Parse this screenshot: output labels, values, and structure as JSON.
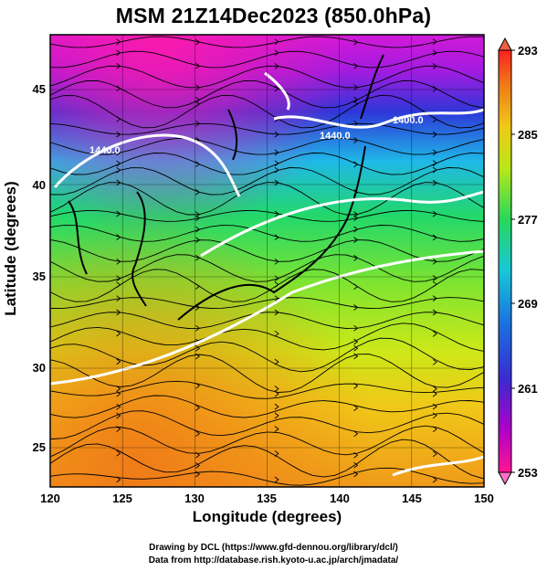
{
  "title": "MSM 21Z14Dec2023 (850.0hPa)",
  "x_axis": {
    "label": "Longitude (degrees)",
    "ticks": [
      "120",
      "125",
      "130",
      "135",
      "140",
      "145",
      "150"
    ],
    "range": [
      120,
      150
    ]
  },
  "y_axis": {
    "label": "Latitude  (degrees)",
    "ticks": [
      "25",
      "30",
      "35",
      "40",
      "45"
    ],
    "range": [
      22.5,
      47.5
    ]
  },
  "colorbar": {
    "ticks": [
      "293",
      "285",
      "277",
      "269",
      "261",
      "253"
    ],
    "range": [
      253,
      293
    ],
    "colors": [
      "#ff1493",
      "#b000c8",
      "#3a2ad0",
      "#1a70e0",
      "#18c8d8",
      "#28d85a",
      "#b8e818",
      "#f0c818",
      "#f07818",
      "#ff2020"
    ]
  },
  "contours": {
    "labels": [
      "1440.0",
      "1440.0",
      "1400.0"
    ],
    "color": "#ffffff"
  },
  "credits": [
    "Drawing by DCL (https://www.gfd-dennou.org/library/dcl/)",
    "Data from http://database.rish.kyoto-u.ac.jp/arch/jmadata/"
  ]
}
